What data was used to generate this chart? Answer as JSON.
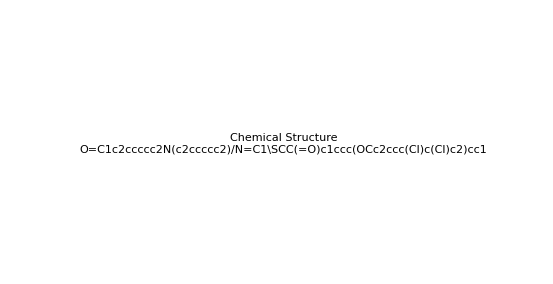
{
  "smiles": "O=C1c2ccccc2N(c2ccccc2)/N=C1\\SCC(=O)c1ccc(OCc2ccc(Cl)c(Cl)c2)cc1",
  "title": "",
  "bg_color": "#ffffff",
  "line_color": "#1a1a4e",
  "figsize": [
    5.53,
    2.84
  ],
  "dpi": 100
}
